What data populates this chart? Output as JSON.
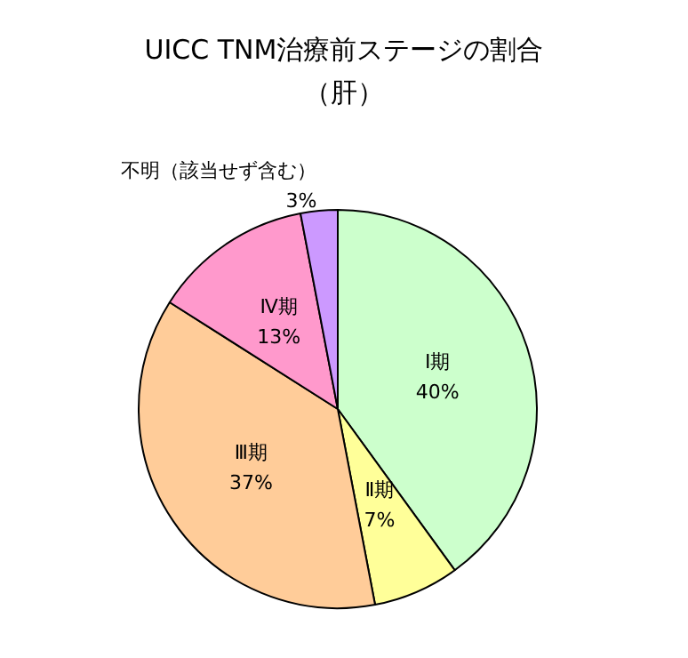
{
  "chart_data": {
    "type": "pie",
    "title": "UICC TNM治療前ステージの割合",
    "subtitle": "（肝）",
    "categories": [
      "Ⅰ期",
      "Ⅱ期",
      "Ⅲ期",
      "Ⅳ期",
      "不明（該当せず含む）"
    ],
    "values": [
      40,
      7,
      37,
      13,
      3
    ],
    "value_labels": [
      "40%",
      "7%",
      "37%",
      "13%",
      "3%"
    ],
    "colors": [
      "#ccffcc",
      "#ffff99",
      "#ffcc99",
      "#ff99cc",
      "#cc99ff"
    ],
    "legend": false
  }
}
